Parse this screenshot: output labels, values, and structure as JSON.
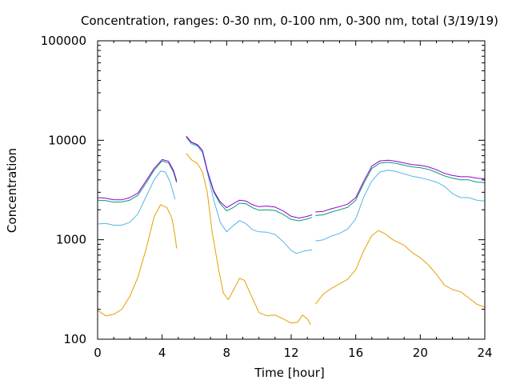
{
  "chart_data": {
    "type": "line",
    "title": "Concentration, ranges: 0-30 nm, 0-100 nm, 0-300 nm, total (3/19/19)",
    "xlabel": "Time [hour]",
    "ylabel": "Concentration",
    "xlim": [
      0,
      24
    ],
    "ylim": [
      100,
      100000
    ],
    "yscale": "log",
    "grid": false,
    "legend": "none",
    "x_ticks": [
      0,
      4,
      8,
      12,
      16,
      20,
      24
    ],
    "x_tick_labels": [
      "0",
      "4",
      "8",
      "12",
      "16",
      "20",
      "24"
    ],
    "y_ticks": [
      100,
      1000,
      10000,
      100000
    ],
    "y_tick_labels": [
      "100",
      "1000",
      "10000",
      "100000"
    ],
    "series": [
      {
        "color": "#e69f00",
        "segments": [
          [
            [
              0,
              195
            ],
            [
              0.5,
              172
            ],
            [
              1,
              178
            ],
            [
              1.5,
              200
            ],
            [
              2,
              270
            ],
            [
              2.5,
              420
            ],
            [
              3,
              800
            ],
            [
              3.5,
              1700
            ],
            [
              3.9,
              2250
            ],
            [
              4.3,
              2100
            ],
            [
              4.6,
              1650
            ],
            [
              4.8,
              1100
            ],
            [
              4.9,
              820
            ]
          ],
          [
            [
              5.5,
              7400
            ],
            [
              5.8,
              6400
            ],
            [
              6.2,
              5800
            ],
            [
              6.5,
              4800
            ],
            [
              6.8,
              3000
            ],
            [
              7.1,
              1200
            ],
            [
              7.5,
              500
            ],
            [
              7.8,
              290
            ],
            [
              8.1,
              250
            ],
            [
              8.5,
              330
            ],
            [
              8.8,
              410
            ],
            [
              9.1,
              390
            ],
            [
              9.5,
              280
            ],
            [
              10,
              185
            ],
            [
              10.5,
              172
            ],
            [
              11,
              175
            ],
            [
              11.5,
              160
            ],
            [
              12,
              145
            ],
            [
              12.4,
              148
            ],
            [
              12.7,
              175
            ],
            [
              13,
              160
            ],
            [
              13.2,
              140
            ]
          ],
          [
            [
              13.5,
              225
            ],
            [
              14,
              285
            ],
            [
              14.5,
              325
            ],
            [
              15,
              360
            ],
            [
              15.5,
              400
            ],
            [
              16,
              500
            ],
            [
              16.5,
              780
            ],
            [
              17,
              1100
            ],
            [
              17.4,
              1240
            ],
            [
              17.8,
              1150
            ],
            [
              18.3,
              1000
            ],
            [
              19,
              880
            ],
            [
              19.5,
              740
            ],
            [
              20,
              660
            ],
            [
              20.5,
              560
            ],
            [
              21,
              450
            ],
            [
              21.5,
              350
            ],
            [
              22,
              315
            ],
            [
              22.5,
              300
            ],
            [
              23,
              260
            ],
            [
              23.5,
              225
            ],
            [
              24,
              210
            ]
          ]
        ]
      },
      {
        "color": "#56b4e9",
        "segments": [
          [
            [
              0,
              1440
            ],
            [
              0.5,
              1460
            ],
            [
              1,
              1400
            ],
            [
              1.5,
              1400
            ],
            [
              2,
              1500
            ],
            [
              2.5,
              1820
            ],
            [
              3,
              2700
            ],
            [
              3.5,
              4000
            ],
            [
              3.9,
              4900
            ],
            [
              4.2,
              4800
            ],
            [
              4.5,
              3800
            ],
            [
              4.8,
              2550
            ]
          ],
          [
            [
              5.5,
              10700
            ],
            [
              5.8,
              9200
            ],
            [
              6.2,
              8700
            ],
            [
              6.5,
              7500
            ],
            [
              6.8,
              4800
            ],
            [
              7.2,
              2500
            ],
            [
              7.6,
              1500
            ],
            [
              8,
              1200
            ],
            [
              8.4,
              1380
            ],
            [
              8.8,
              1560
            ],
            [
              9.2,
              1450
            ],
            [
              9.6,
              1260
            ],
            [
              10,
              1200
            ],
            [
              10.5,
              1190
            ],
            [
              11,
              1130
            ],
            [
              11.5,
              960
            ],
            [
              12,
              780
            ],
            [
              12.3,
              730
            ],
            [
              12.8,
              770
            ],
            [
              13.3,
              790
            ]
          ],
          [
            [
              13.5,
              970
            ],
            [
              14,
              1000
            ],
            [
              14.5,
              1090
            ],
            [
              15,
              1160
            ],
            [
              15.5,
              1280
            ],
            [
              16,
              1620
            ],
            [
              16.5,
              2700
            ],
            [
              17,
              3900
            ],
            [
              17.5,
              4800
            ],
            [
              18,
              5000
            ],
            [
              18.5,
              4850
            ],
            [
              19,
              4600
            ],
            [
              19.5,
              4350
            ],
            [
              20,
              4200
            ],
            [
              20.5,
              4000
            ],
            [
              21,
              3800
            ],
            [
              21.5,
              3450
            ],
            [
              22,
              2900
            ],
            [
              22.5,
              2650
            ],
            [
              23,
              2650
            ],
            [
              23.5,
              2500
            ],
            [
              24,
              2450
            ]
          ]
        ]
      },
      {
        "color": "#009e73",
        "segments": [
          [
            [
              0,
              2500
            ],
            [
              0.5,
              2470
            ],
            [
              1,
              2380
            ],
            [
              1.5,
              2400
            ],
            [
              2,
              2500
            ],
            [
              2.5,
              2800
            ],
            [
              3,
              3700
            ],
            [
              3.5,
              5000
            ],
            [
              4,
              6200
            ],
            [
              4.4,
              5900
            ],
            [
              4.7,
              4800
            ],
            [
              4.9,
              3750
            ]
          ],
          [
            [
              5.5,
              10900
            ],
            [
              5.8,
              9500
            ],
            [
              6.2,
              8900
            ],
            [
              6.5,
              7800
            ],
            [
              6.8,
              4900
            ],
            [
              7.2,
              3000
            ],
            [
              7.6,
              2300
            ],
            [
              8,
              1950
            ],
            [
              8.4,
              2100
            ],
            [
              8.8,
              2330
            ],
            [
              9.2,
              2300
            ],
            [
              9.6,
              2100
            ],
            [
              10,
              1980
            ],
            [
              10.5,
              2000
            ],
            [
              11,
              1970
            ],
            [
              11.5,
              1800
            ],
            [
              12,
              1600
            ],
            [
              12.5,
              1550
            ],
            [
              13,
              1620
            ],
            [
              13.3,
              1680
            ]
          ],
          [
            [
              13.5,
              1750
            ],
            [
              14,
              1780
            ],
            [
              14.5,
              1900
            ],
            [
              15,
              2000
            ],
            [
              15.5,
              2120
            ],
            [
              16,
              2500
            ],
            [
              16.5,
              3700
            ],
            [
              17,
              5200
            ],
            [
              17.5,
              5900
            ],
            [
              18,
              6000
            ],
            [
              18.5,
              5850
            ],
            [
              19,
              5600
            ],
            [
              19.5,
              5400
            ],
            [
              20,
              5300
            ],
            [
              20.5,
              5100
            ],
            [
              21,
              4750
            ],
            [
              21.5,
              4380
            ],
            [
              22,
              4150
            ],
            [
              22.5,
              4000
            ],
            [
              23,
              4000
            ],
            [
              23.5,
              3800
            ],
            [
              24,
              3750
            ]
          ]
        ]
      },
      {
        "color": "#9400d3",
        "segments": [
          [
            [
              0,
              2650
            ],
            [
              0.5,
              2620
            ],
            [
              1,
              2520
            ],
            [
              1.5,
              2520
            ],
            [
              2,
              2650
            ],
            [
              2.5,
              2950
            ],
            [
              3,
              3900
            ],
            [
              3.5,
              5200
            ],
            [
              4,
              6400
            ],
            [
              4.4,
              6150
            ],
            [
              4.7,
              5000
            ],
            [
              4.9,
              3900
            ]
          ],
          [
            [
              5.5,
              11000
            ],
            [
              5.8,
              9600
            ],
            [
              6.2,
              9000
            ],
            [
              6.5,
              7900
            ],
            [
              6.8,
              5000
            ],
            [
              7.2,
              3100
            ],
            [
              7.6,
              2400
            ],
            [
              8,
              2100
            ],
            [
              8.4,
              2300
            ],
            [
              8.8,
              2500
            ],
            [
              9.2,
              2450
            ],
            [
              9.6,
              2250
            ],
            [
              10,
              2150
            ],
            [
              10.5,
              2180
            ],
            [
              11,
              2130
            ],
            [
              11.5,
              1950
            ],
            [
              12,
              1720
            ],
            [
              12.5,
              1650
            ],
            [
              13,
              1720
            ],
            [
              13.3,
              1780
            ]
          ],
          [
            [
              13.5,
              1900
            ],
            [
              14,
              1930
            ],
            [
              14.5,
              2050
            ],
            [
              15,
              2150
            ],
            [
              15.5,
              2280
            ],
            [
              16,
              2650
            ],
            [
              16.5,
              3900
            ],
            [
              17,
              5500
            ],
            [
              17.5,
              6200
            ],
            [
              18,
              6300
            ],
            [
              18.5,
              6150
            ],
            [
              19,
              5900
            ],
            [
              19.5,
              5700
            ],
            [
              20,
              5600
            ],
            [
              20.5,
              5400
            ],
            [
              21,
              5050
            ],
            [
              21.5,
              4650
            ],
            [
              22,
              4420
            ],
            [
              22.5,
              4300
            ],
            [
              23,
              4300
            ],
            [
              23.5,
              4150
            ],
            [
              24,
              4100
            ]
          ]
        ]
      }
    ]
  }
}
